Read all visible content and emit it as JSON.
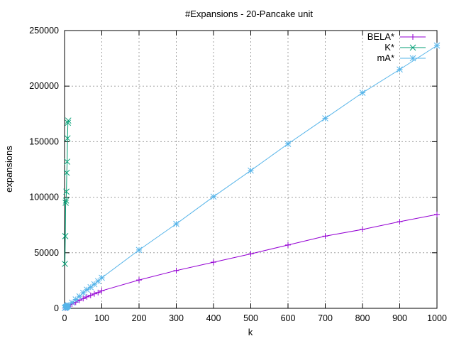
{
  "chart_data": {
    "type": "line",
    "title": "#Expansions - 20-Pancake unit",
    "xlabel": "k",
    "ylabel": "expansions",
    "xlim": [
      0,
      1000
    ],
    "ylim": [
      0,
      250000
    ],
    "x_ticks": [
      0,
      100,
      200,
      300,
      400,
      500,
      600,
      700,
      800,
      900,
      1000
    ],
    "y_ticks": [
      0,
      50000,
      100000,
      150000,
      200000,
      250000
    ],
    "grid": true,
    "legend_position": "top-right",
    "series": [
      {
        "name": "BELA*",
        "color": "#9400d3",
        "marker": "plus",
        "x": [
          1,
          2,
          3,
          4,
          5,
          6,
          7,
          8,
          9,
          10,
          20,
          30,
          40,
          50,
          60,
          70,
          80,
          90,
          100,
          200,
          300,
          400,
          500,
          600,
          700,
          800,
          900,
          1000
        ],
        "y": [
          200,
          400,
          600,
          800,
          1000,
          1200,
          1400,
          1600,
          1800,
          2000,
          3800,
          5500,
          7200,
          8800,
          10300,
          11700,
          13000,
          14200,
          15800,
          25500,
          34000,
          41500,
          49000,
          57000,
          65000,
          71000,
          78000,
          84500
        ]
      },
      {
        "name": "K*",
        "color": "#009e73",
        "marker": "cross",
        "x": [
          1,
          2,
          3,
          4,
          5,
          6,
          7,
          8,
          9,
          10
        ],
        "y": [
          40000,
          65000,
          95000,
          97000,
          105000,
          122000,
          132000,
          153000,
          167000,
          169000
        ]
      },
      {
        "name": "mA*",
        "color": "#56b4e9",
        "marker": "star",
        "x": [
          1,
          2,
          3,
          4,
          5,
          6,
          7,
          8,
          9,
          10,
          20,
          30,
          40,
          50,
          60,
          70,
          80,
          90,
          100,
          200,
          300,
          400,
          500,
          600,
          700,
          800,
          900,
          1000
        ],
        "y": [
          300,
          500,
          800,
          1000,
          1300,
          1600,
          1900,
          2200,
          2500,
          2800,
          5200,
          8000,
          10800,
          14000,
          16800,
          19000,
          21700,
          24500,
          27500,
          52500,
          76000,
          100500,
          124000,
          148000,
          171000,
          194000,
          215000,
          236500
        ]
      }
    ]
  }
}
